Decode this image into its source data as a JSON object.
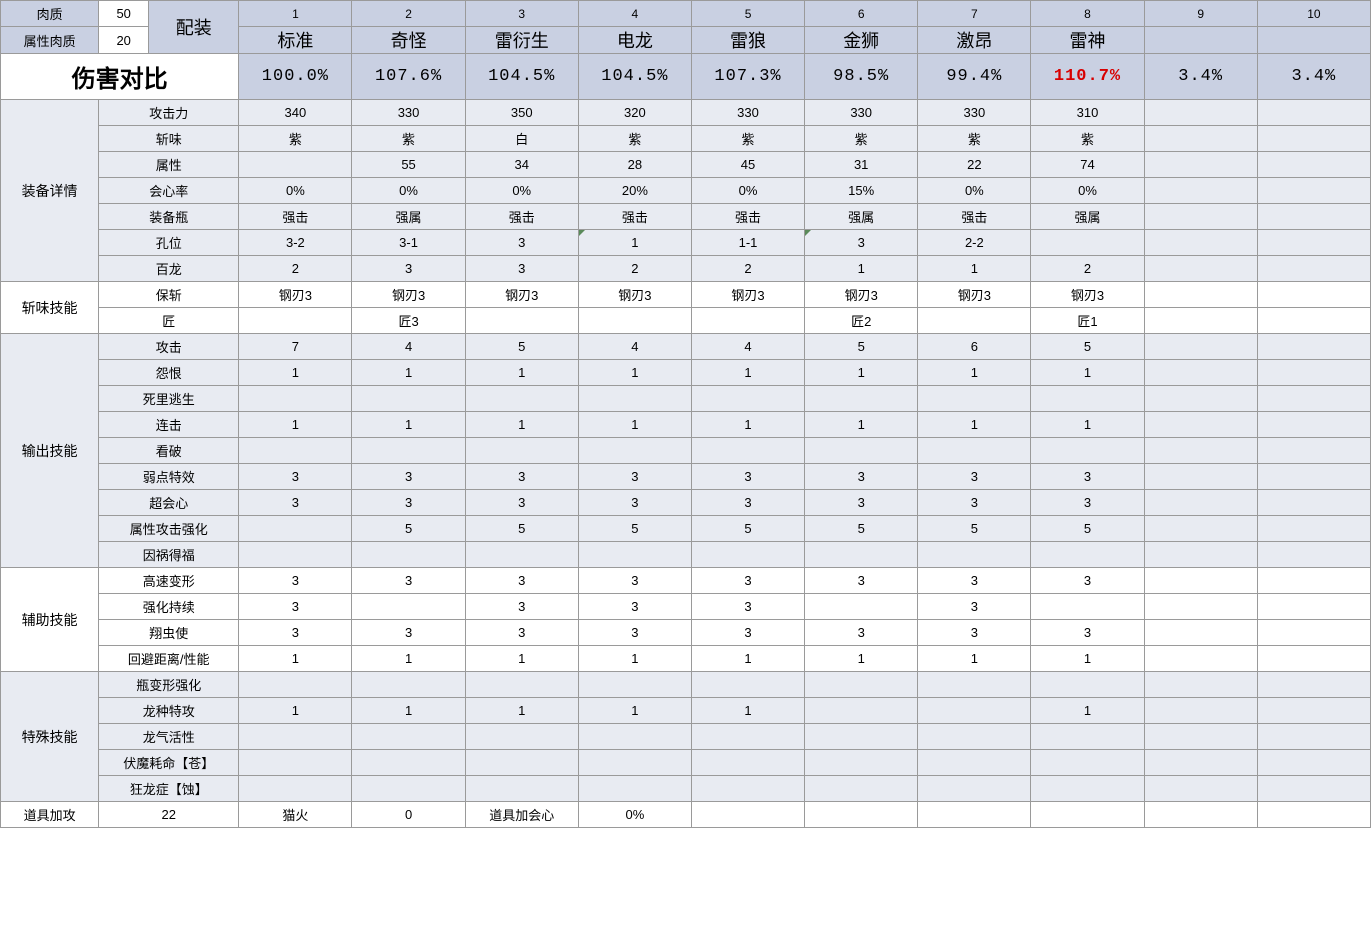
{
  "topLeft": {
    "meat_label": "肉质",
    "meat_value": "50",
    "attr_meat_label": "属性肉质",
    "attr_meat_value": "20",
    "loadout_label": "配装"
  },
  "columns": [
    "1",
    "2",
    "3",
    "4",
    "5",
    "6",
    "7",
    "8",
    "9",
    "10"
  ],
  "loadouts": [
    "标准",
    "奇怪",
    "雷衍生",
    "电龙",
    "雷狼",
    "金狮",
    "激昂",
    "雷神",
    "",
    ""
  ],
  "damage": {
    "title": "伤害对比",
    "values": [
      "100.0%",
      "107.6%",
      "104.5%",
      "104.5%",
      "107.3%",
      "98.5%",
      "99.4%",
      "110.7%",
      "3.4%",
      "3.4%"
    ],
    "highlight_index": 7
  },
  "sections": [
    {
      "label": "装备详情",
      "alt": true,
      "rows": [
        {
          "label": "攻击力",
          "vals": [
            "340",
            "330",
            "350",
            "320",
            "330",
            "330",
            "330",
            "310",
            "",
            ""
          ]
        },
        {
          "label": "斩味",
          "vals": [
            "紫",
            "紫",
            "白",
            "紫",
            "紫",
            "紫",
            "紫",
            "紫",
            "",
            ""
          ]
        },
        {
          "label": "属性",
          "vals": [
            "",
            "55",
            "34",
            "28",
            "45",
            "31",
            "22",
            "74",
            "",
            ""
          ]
        },
        {
          "label": "会心率",
          "vals": [
            "0%",
            "0%",
            "0%",
            "20%",
            "0%",
            "15%",
            "0%",
            "0%",
            "",
            ""
          ]
        },
        {
          "label": "装备瓶",
          "vals": [
            "强击",
            "强属",
            "强击",
            "强击",
            "强击",
            "强属",
            "强击",
            "强属",
            "",
            ""
          ]
        },
        {
          "label": "孔位",
          "vals": [
            "3-2",
            "3-1",
            "3",
            "1",
            "1-1",
            "3",
            "2-2",
            "",
            "",
            ""
          ],
          "markers": [
            3,
            5
          ]
        },
        {
          "label": "百龙",
          "vals": [
            "2",
            "3",
            "3",
            "2",
            "2",
            "1",
            "1",
            "2",
            "",
            ""
          ]
        }
      ]
    },
    {
      "label": "斩味技能",
      "alt": false,
      "rows": [
        {
          "label": "保斩",
          "vals": [
            "钢刃3",
            "钢刃3",
            "钢刃3",
            "钢刃3",
            "钢刃3",
            "钢刃3",
            "钢刃3",
            "钢刃3",
            "",
            ""
          ]
        },
        {
          "label": "匠",
          "vals": [
            "",
            "匠3",
            "",
            "",
            "",
            "匠2",
            "",
            "匠1",
            "",
            ""
          ]
        }
      ]
    },
    {
      "label": "输出技能",
      "alt": true,
      "rows": [
        {
          "label": "攻击",
          "vals": [
            "7",
            "4",
            "5",
            "4",
            "4",
            "5",
            "6",
            "5",
            "",
            ""
          ]
        },
        {
          "label": "怨恨",
          "vals": [
            "1",
            "1",
            "1",
            "1",
            "1",
            "1",
            "1",
            "1",
            "",
            ""
          ]
        },
        {
          "label": "死里逃生",
          "vals": [
            "",
            "",
            "",
            "",
            "",
            "",
            "",
            "",
            "",
            ""
          ]
        },
        {
          "label": "连击",
          "vals": [
            "1",
            "1",
            "1",
            "1",
            "1",
            "1",
            "1",
            "1",
            "",
            ""
          ]
        },
        {
          "label": "看破",
          "vals": [
            "",
            "",
            "",
            "",
            "",
            "",
            "",
            "",
            "",
            ""
          ]
        },
        {
          "label": "弱点特效",
          "vals": [
            "3",
            "3",
            "3",
            "3",
            "3",
            "3",
            "3",
            "3",
            "",
            ""
          ]
        },
        {
          "label": "超会心",
          "vals": [
            "3",
            "3",
            "3",
            "3",
            "3",
            "3",
            "3",
            "3",
            "",
            ""
          ]
        },
        {
          "label": "属性攻击强化",
          "vals": [
            "",
            "5",
            "5",
            "5",
            "5",
            "5",
            "5",
            "5",
            "",
            ""
          ]
        },
        {
          "label": "因祸得福",
          "vals": [
            "",
            "",
            "",
            "",
            "",
            "",
            "",
            "",
            "",
            ""
          ]
        }
      ]
    },
    {
      "label": "辅助技能",
      "alt": false,
      "rows": [
        {
          "label": "高速变形",
          "vals": [
            "3",
            "3",
            "3",
            "3",
            "3",
            "3",
            "3",
            "3",
            "",
            ""
          ]
        },
        {
          "label": "强化持续",
          "vals": [
            "3",
            "",
            "3",
            "3",
            "3",
            "",
            "3",
            "",
            "",
            ""
          ]
        },
        {
          "label": "翔虫使",
          "vals": [
            "3",
            "3",
            "3",
            "3",
            "3",
            "3",
            "3",
            "3",
            "",
            ""
          ]
        },
        {
          "label": "回避距离/性能",
          "vals": [
            "1",
            "1",
            "1",
            "1",
            "1",
            "1",
            "1",
            "1",
            "",
            ""
          ]
        }
      ]
    },
    {
      "label": "特殊技能",
      "alt": true,
      "rows": [
        {
          "label": "瓶变形强化",
          "vals": [
            "",
            "",
            "",
            "",
            "",
            "",
            "",
            "",
            "",
            ""
          ]
        },
        {
          "label": "龙种特攻",
          "vals": [
            "1",
            "1",
            "1",
            "1",
            "1",
            "",
            "",
            "1",
            "",
            ""
          ]
        },
        {
          "label": "龙气活性",
          "vals": [
            "",
            "",
            "",
            "",
            "",
            "",
            "",
            "",
            "",
            ""
          ]
        },
        {
          "label": "伏魔耗命【苍】",
          "vals": [
            "",
            "",
            "",
            "",
            "",
            "",
            "",
            "",
            "",
            ""
          ]
        },
        {
          "label": "狂龙症【蚀】",
          "vals": [
            "",
            "",
            "",
            "",
            "",
            "",
            "",
            "",
            "",
            ""
          ]
        }
      ]
    }
  ],
  "bottom": {
    "label1": "道具加攻",
    "val1": "22",
    "label2": "猫火",
    "val2": "0",
    "label3": "道具加会心",
    "val3": "0%"
  },
  "colors": {
    "header_blue": "#c9d0e2",
    "alt_bg": "#e8ebf2",
    "border": "#9a9a9a",
    "highlight_text": "#d80000"
  }
}
